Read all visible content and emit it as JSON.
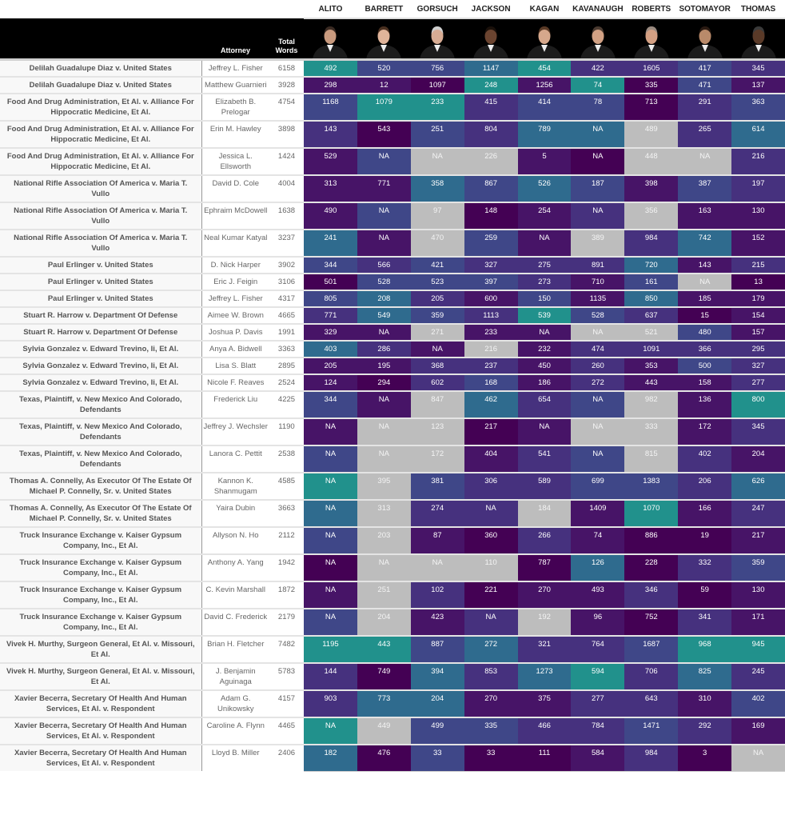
{
  "header": {
    "attorney_label": "Attorney",
    "total_words_label": "Total Words",
    "justices": [
      "ALITO",
      "BARRETT",
      "GORSUCH",
      "JACKSON",
      "KAGAN",
      "KAVANAUGH",
      "ROBERTS",
      "SOTOMAYOR",
      "THOMAS"
    ]
  },
  "palette": {
    "0": "#440154",
    "1": "#471467",
    "2": "#46317e",
    "3": "#3f4788",
    "4": "#2f6b8e",
    "5": "#21918c",
    "G": "#bdbdbd"
  },
  "rows": [
    {
      "case": "Delilah Guadalupe Diaz v. United States",
      "attorney": "Jeffrey L. Fisher",
      "words": "6158",
      "values": [
        "492",
        "520",
        "756",
        "1147",
        "454",
        "422",
        "1605",
        "417",
        "345"
      ],
      "cell_colors": "533452232"
    },
    {
      "case": "Delilah Guadalupe Diaz v. United States",
      "attorney": "Matthew Guarnieri",
      "words": "3928",
      "values": [
        "298",
        "12",
        "1097",
        "248",
        "1256",
        "74",
        "335",
        "471",
        "137"
      ],
      "cell_colors": "110515031"
    },
    {
      "case": "Food And Drug Administration, Et Al. v. Alliance For Hippocratic Medicine, Et Al.",
      "attorney": "Elizabeth B. Prelogar",
      "words": "4754",
      "values": [
        "1168",
        "1079",
        "233",
        "415",
        "414",
        "78",
        "713",
        "291",
        "363"
      ],
      "cell_colors": "355233023"
    },
    {
      "case": "Food And Drug Administration, Et Al. v. Alliance For Hippocratic Medicine, Et Al.",
      "attorney": "Erin M. Hawley",
      "words": "3898",
      "values": [
        "143",
        "543",
        "251",
        "804",
        "789",
        "NA",
        "489",
        "265",
        "614"
      ],
      "cell_colors": "203244G24"
    },
    {
      "case": "Food And Drug Administration, Et Al. v. Alliance For Hippocratic Medicine, Et Al.",
      "attorney": "Jessica L. Ellsworth",
      "words": "1424",
      "values": [
        "529",
        "NA",
        "NA",
        "226",
        "5",
        "NA",
        "448",
        "NA",
        "216"
      ],
      "cell_colors": "13GG10GG2"
    },
    {
      "case": "National Rifle Association Of America v. Maria T. Vullo",
      "attorney": "David D. Cole",
      "words": "4004",
      "values": [
        "313",
        "771",
        "358",
        "867",
        "526",
        "187",
        "398",
        "387",
        "197"
      ],
      "cell_colors": "114343132"
    },
    {
      "case": "National Rifle Association Of America v. Maria T. Vullo",
      "attorney": "Ephraim McDowell",
      "words": "1638",
      "values": [
        "490",
        "NA",
        "97",
        "148",
        "254",
        "NA",
        "356",
        "163",
        "130"
      ],
      "cell_colors": "13G012G11"
    },
    {
      "case": "National Rifle Association Of America v. Maria T. Vullo",
      "attorney": "Neal Kumar Katyal",
      "words": "3237",
      "values": [
        "241",
        "NA",
        "470",
        "259",
        "NA",
        "389",
        "984",
        "742",
        "152"
      ],
      "cell_colors": "41G31G241"
    },
    {
      "case": "Paul Erlinger v. United States",
      "attorney": "D. Nick Harper",
      "words": "3902",
      "values": [
        "344",
        "566",
        "421",
        "327",
        "275",
        "891",
        "720",
        "143",
        "215"
      ],
      "cell_colors": "323222412"
    },
    {
      "case": "Paul Erlinger v. United States",
      "attorney": "Eric J. Feigin",
      "words": "3106",
      "values": [
        "501",
        "528",
        "523",
        "397",
        "273",
        "710",
        "161",
        "NA",
        "13"
      ],
      "cell_colors": "0333213G0"
    },
    {
      "case": "Paul Erlinger v. United States",
      "attorney": "Jeffrey L. Fisher",
      "words": "4317",
      "values": [
        "805",
        "208",
        "205",
        "600",
        "150",
        "1135",
        "850",
        "185",
        "179"
      ],
      "cell_colors": "342131411"
    },
    {
      "case": "Stuart R. Harrow v. Department Of Defense",
      "attorney": "Aimee W. Brown",
      "words": "4665",
      "values": [
        "771",
        "549",
        "359",
        "1113",
        "539",
        "528",
        "637",
        "15",
        "154"
      ],
      "cell_colors": "243253201"
    },
    {
      "case": "Stuart R. Harrow v. Department Of Defense",
      "attorney": "Joshua P. Davis",
      "words": "1991",
      "values": [
        "329",
        "NA",
        "271",
        "233",
        "NA",
        "NA",
        "521",
        "480",
        "157"
      ],
      "cell_colors": "11G11GG31"
    },
    {
      "case": "Sylvia Gonzalez v. Edward Trevino, Ii, Et Al.",
      "attorney": "Anya A. Bidwell",
      "words": "3363",
      "values": [
        "403",
        "286",
        "NA",
        "216",
        "232",
        "474",
        "1091",
        "366",
        "295"
      ],
      "cell_colors": "421G12222"
    },
    {
      "case": "Sylvia Gonzalez v. Edward Trevino, Ii, Et Al.",
      "attorney": "Lisa S. Blatt",
      "words": "2895",
      "values": [
        "205",
        "195",
        "368",
        "237",
        "450",
        "260",
        "353",
        "500",
        "327"
      ],
      "cell_colors": "112212132"
    },
    {
      "case": "Sylvia Gonzalez v. Edward Trevino, Ii, Et Al.",
      "attorney": "Nicole F. Reaves",
      "words": "2524",
      "values": [
        "124",
        "294",
        "602",
        "168",
        "186",
        "272",
        "443",
        "158",
        "277"
      ],
      "cell_colors": "102312112"
    },
    {
      "case": "Texas, Plaintiff, v. New Mexico And Colorado, Defendants",
      "attorney": "Frederick Liu",
      "words": "4225",
      "values": [
        "344",
        "NA",
        "847",
        "462",
        "654",
        "NA",
        "982",
        "136",
        "800"
      ],
      "cell_colors": "31G423G15"
    },
    {
      "case": "Texas, Plaintiff, v. New Mexico And Colorado, Defendants",
      "attorney": "Jeffrey J. Wechsler",
      "words": "1190",
      "values": [
        "NA",
        "NA",
        "123",
        "217",
        "NA",
        "NA",
        "333",
        "172",
        "345"
      ],
      "cell_colors": "1GG01GG12"
    },
    {
      "case": "Texas, Plaintiff, v. New Mexico And Colorado, Defendants",
      "attorney": "Lanora C. Pettit",
      "words": "2538",
      "values": [
        "NA",
        "NA",
        "172",
        "404",
        "541",
        "NA",
        "815",
        "402",
        "204"
      ],
      "cell_colors": "3GG123G21"
    },
    {
      "case": "Thomas A. Connelly, As Executor Of The Estate Of Michael P. Connelly, Sr. v. United States",
      "attorney": "Kannon K. Shanmugam",
      "words": "4585",
      "values": [
        "NA",
        "395",
        "381",
        "306",
        "589",
        "699",
        "1383",
        "206",
        "626"
      ],
      "cell_colors": "5G3223324"
    },
    {
      "case": "Thomas A. Connelly, As Executor Of The Estate Of Michael P. Connelly, Sr. v. United States",
      "attorney": "Yaira Dubin",
      "words": "3663",
      "values": [
        "NA",
        "313",
        "274",
        "NA",
        "184",
        "1409",
        "1070",
        "166",
        "247"
      ],
      "cell_colors": "4G22G1512"
    },
    {
      "case": "Truck Insurance Exchange v. Kaiser Gypsum Company, Inc., Et Al.",
      "attorney": "Allyson N. Ho",
      "words": "2112",
      "values": [
        "NA",
        "203",
        "87",
        "360",
        "266",
        "74",
        "886",
        "19",
        "217"
      ],
      "cell_colors": "3G1021001"
    },
    {
      "case": "Truck Insurance Exchange v. Kaiser Gypsum Company, Inc., Et Al.",
      "attorney": "Anthony A. Yang",
      "words": "1942",
      "values": [
        "NA",
        "NA",
        "NA",
        "110",
        "787",
        "126",
        "228",
        "332",
        "359"
      ],
      "cell_colors": "0GGG04023"
    },
    {
      "case": "Truck Insurance Exchange v. Kaiser Gypsum Company, Inc., Et Al.",
      "attorney": "C. Kevin Marshall",
      "words": "1872",
      "values": [
        "NA",
        "251",
        "102",
        "221",
        "270",
        "493",
        "346",
        "59",
        "130"
      ],
      "cell_colors": "1G2011201"
    },
    {
      "case": "Truck Insurance Exchange v. Kaiser Gypsum Company, Inc., Et Al.",
      "attorney": "David C. Frederick",
      "words": "2179",
      "values": [
        "NA",
        "204",
        "423",
        "NA",
        "192",
        "96",
        "752",
        "341",
        "171"
      ],
      "cell_colors": "3G12G1021"
    },
    {
      "case": "Vivek H. Murthy, Surgeon General, Et Al. v. Missouri, Et Al.",
      "attorney": "Brian H. Fletcher",
      "words": "7482",
      "values": [
        "1195",
        "443",
        "887",
        "272",
        "321",
        "764",
        "1687",
        "968",
        "945"
      ],
      "cell_colors": "553422355"
    },
    {
      "case": "Vivek H. Murthy, Surgeon General, Et Al. v. Missouri, Et Al.",
      "attorney": "J. Benjamin Aguinaga",
      "words": "5783",
      "values": [
        "144",
        "749",
        "394",
        "853",
        "1273",
        "594",
        "706",
        "825",
        "245"
      ],
      "cell_colors": "204245242"
    },
    {
      "case": "Xavier Becerra, Secretary Of Health And Human Services, Et Al. v. Respondent",
      "attorney": "Adam G. Unikowsky",
      "words": "4157",
      "values": [
        "903",
        "773",
        "204",
        "270",
        "375",
        "277",
        "643",
        "310",
        "402"
      ],
      "cell_colors": "244112213"
    },
    {
      "case": "Xavier Becerra, Secretary Of Health And Human Services, Et Al. v. Respondent",
      "attorney": "Caroline A. Flynn",
      "words": "4465",
      "values": [
        "NA",
        "449",
        "499",
        "335",
        "466",
        "784",
        "1471",
        "292",
        "169"
      ],
      "cell_colors": "5G3322321"
    },
    {
      "case": "Xavier Becerra, Secretary Of Health And Human Services, Et Al. v. Respondent",
      "attorney": "Lloyd B. Miller",
      "words": "2406",
      "values": [
        "182",
        "476",
        "33",
        "33",
        "111",
        "584",
        "984",
        "3",
        "NA"
      ],
      "cell_colors": "40300120G"
    }
  ]
}
